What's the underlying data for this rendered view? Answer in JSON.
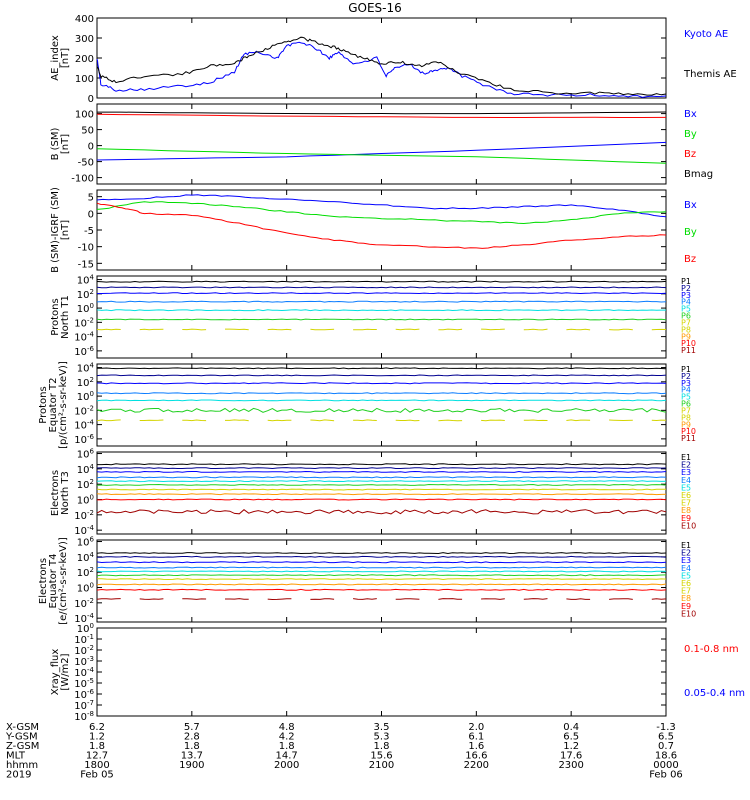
{
  "title": "GOES-16",
  "colors": {
    "black": "#000000",
    "blue": "#0000ff",
    "green": "#00dd00",
    "red": "#ff0000",
    "navy": "#000090",
    "dodgerblue": "#0a7cff",
    "cyan": "#00e0e0",
    "lime": "#20d020",
    "yellow": "#d4d400",
    "orange": "#ff9a00",
    "darkred": "#a00000"
  },
  "chart_data": [
    {
      "id": "ae",
      "type": "line",
      "ylabel": [
        "AE_index",
        "[nT]"
      ],
      "yticks": [
        "400",
        "300",
        "200",
        "100",
        "0"
      ],
      "ylim": [
        0,
        400
      ],
      "series": [
        {
          "name": "Kyoto AE",
          "color": "blue",
          "points": [
            [
              0,
              200
            ],
            [
              0.04,
              70
            ],
            [
              0.2,
              40
            ],
            [
              0.5,
              45
            ],
            [
              0.9,
              60
            ],
            [
              1.2,
              80
            ],
            [
              1.45,
              130
            ],
            [
              1.55,
              220
            ],
            [
              1.7,
              230
            ],
            [
              1.9,
              200
            ],
            [
              2.0,
              260
            ],
            [
              2.15,
              280
            ],
            [
              2.3,
              250
            ],
            [
              2.45,
              200
            ],
            [
              2.55,
              230
            ],
            [
              2.7,
              170
            ],
            [
              2.95,
              200
            ],
            [
              3.05,
              110
            ],
            [
              3.15,
              150
            ],
            [
              3.3,
              170
            ],
            [
              3.45,
              120
            ],
            [
              3.55,
              140
            ],
            [
              3.7,
              150
            ],
            [
              3.85,
              110
            ],
            [
              4.1,
              60
            ],
            [
              4.4,
              20
            ],
            [
              4.8,
              15
            ],
            [
              5.2,
              15
            ],
            [
              5.6,
              10
            ],
            [
              6,
              10
            ]
          ]
        },
        {
          "name": "Themis AE",
          "color": "black",
          "points": [
            [
              0,
              160
            ],
            [
              0.04,
              110
            ],
            [
              0.2,
              80
            ],
            [
              0.5,
              110
            ],
            [
              0.9,
              120
            ],
            [
              1.2,
              160
            ],
            [
              1.45,
              175
            ],
            [
              1.6,
              210
            ],
            [
              1.8,
              250
            ],
            [
              2.0,
              280
            ],
            [
              2.15,
              300
            ],
            [
              2.3,
              280
            ],
            [
              2.45,
              260
            ],
            [
              2.6,
              240
            ],
            [
              2.8,
              200
            ],
            [
              3.0,
              170
            ],
            [
              3.2,
              180
            ],
            [
              3.4,
              160
            ],
            [
              3.6,
              180
            ],
            [
              3.8,
              130
            ],
            [
              4.1,
              80
            ],
            [
              4.4,
              40
            ],
            [
              4.8,
              25
            ],
            [
              5.2,
              25
            ],
            [
              5.6,
              20
            ],
            [
              6,
              20
            ]
          ]
        }
      ]
    },
    {
      "id": "bsm",
      "type": "line",
      "ylabel": [
        "B (SM)",
        "[nT]"
      ],
      "yticks": [
        "100",
        "50",
        "0",
        "-50",
        "-100"
      ],
      "ylim": [
        -120,
        130
      ],
      "series": [
        {
          "name": "Bx",
          "color": "blue",
          "points": [
            [
              0,
              -45
            ],
            [
              2,
              -35
            ],
            [
              4,
              -15
            ],
            [
              6,
              10
            ]
          ]
        },
        {
          "name": "By",
          "color": "green",
          "points": [
            [
              0,
              -10
            ],
            [
              2,
              -25
            ],
            [
              4,
              -35
            ],
            [
              6,
              -55
            ]
          ]
        },
        {
          "name": "Bz",
          "color": "red",
          "points": [
            [
              0,
              98
            ],
            [
              2,
              92
            ],
            [
              4,
              88
            ],
            [
              6,
              88
            ]
          ]
        },
        {
          "name": "Bmag",
          "color": "black",
          "points": [
            [
              0,
              105
            ],
            [
              2,
              100
            ],
            [
              4,
              100
            ],
            [
              6,
              105
            ]
          ]
        }
      ]
    },
    {
      "id": "bigrf",
      "type": "line",
      "ylabel": [
        "B (SM)-IGRF (SM)",
        "[nT]"
      ],
      "yticks": [
        "5",
        "0",
        "-5",
        "-10",
        "-15"
      ],
      "ylim": [
        -17,
        7
      ],
      "series": [
        {
          "name": "Bx",
          "color": "blue",
          "points": [
            [
              0,
              4
            ],
            [
              0.5,
              4.5
            ],
            [
              1.0,
              5.5
            ],
            [
              1.5,
              5
            ],
            [
              2.0,
              4.2
            ],
            [
              2.5,
              3.5
            ],
            [
              3.0,
              2.5
            ],
            [
              3.5,
              1.5
            ],
            [
              4.0,
              1.5
            ],
            [
              4.5,
              2
            ],
            [
              5.0,
              2.5
            ],
            [
              5.5,
              1
            ],
            [
              6,
              -1
            ]
          ]
        },
        {
          "name": "By",
          "color": "green",
          "points": [
            [
              0,
              1
            ],
            [
              0.5,
              3.5
            ],
            [
              1.0,
              3
            ],
            [
              1.5,
              2
            ],
            [
              2.0,
              0.5
            ],
            [
              2.5,
              -1
            ],
            [
              3.0,
              -1.5
            ],
            [
              3.5,
              -2
            ],
            [
              4.0,
              -2.5
            ],
            [
              4.5,
              -3
            ],
            [
              5.0,
              -2
            ],
            [
              5.5,
              0
            ],
            [
              6,
              0.5
            ]
          ]
        },
        {
          "name": "Bz",
          "color": "red",
          "points": [
            [
              0,
              3
            ],
            [
              0.3,
              1.5
            ],
            [
              0.5,
              0
            ],
            [
              1.0,
              -0.5
            ],
            [
              1.5,
              -3
            ],
            [
              2.0,
              -6
            ],
            [
              2.5,
              -8
            ],
            [
              3.0,
              -9.5
            ],
            [
              3.5,
              -10
            ],
            [
              4.0,
              -10.5
            ],
            [
              4.5,
              -9.5
            ],
            [
              5.0,
              -8
            ],
            [
              5.5,
              -7
            ],
            [
              6,
              -6.5
            ]
          ]
        }
      ]
    },
    {
      "id": "p1",
      "type": "line",
      "log": true,
      "ylabel": [
        "Protons",
        "North T1"
      ],
      "yticks": [
        "10^4",
        "10^2",
        "10^0",
        "10^-2",
        "10^-4",
        "10^-6"
      ],
      "ylim": [
        -7,
        4.5
      ],
      "legend": [
        "P1",
        "P2",
        "P3",
        "P4",
        "P5",
        "P6",
        "P7",
        "P8",
        "P9",
        "P10",
        "P11"
      ],
      "legend_colors": [
        "black",
        "navy",
        "blue",
        "dodgerblue",
        "cyan",
        "lime",
        "yellow",
        "yellow",
        "orange",
        "red",
        "darkred"
      ],
      "series": [
        {
          "name": "P1",
          "color": "black",
          "level": 3.7
        },
        {
          "name": "P2",
          "color": "navy",
          "level": 2.9
        },
        {
          "name": "P3",
          "color": "blue",
          "level": 2.1
        },
        {
          "name": "P4",
          "color": "dodgerblue",
          "level": 0.9
        },
        {
          "name": "P5",
          "color": "cyan",
          "level": -0.3
        },
        {
          "name": "P6",
          "color": "lime",
          "level": -1.6
        },
        {
          "name": "P7",
          "color": "yellow",
          "level": -3.0,
          "dashed": true
        }
      ]
    },
    {
      "id": "p2",
      "type": "line",
      "log": true,
      "ylabel": [
        "Protons",
        "Equator T2",
        "[p/(cm²-s-sr-keV)]"
      ],
      "yticks": [
        "10^4",
        "10^2",
        "10^0",
        "10^-2",
        "10^-4",
        "10^-6"
      ],
      "ylim": [
        -7,
        4.5
      ],
      "legend": [
        "P1",
        "P2",
        "P3",
        "P4",
        "P5",
        "P6",
        "P7",
        "P8",
        "P9",
        "P10",
        "P11"
      ],
      "legend_colors": [
        "black",
        "navy",
        "blue",
        "dodgerblue",
        "cyan",
        "lime",
        "yellow",
        "yellow",
        "orange",
        "red",
        "darkred"
      ],
      "series": [
        {
          "name": "P1",
          "color": "black",
          "level": 3.9
        },
        {
          "name": "P2",
          "color": "navy",
          "level": 2.9
        },
        {
          "name": "P3",
          "color": "blue",
          "level": 1.8
        },
        {
          "name": "P4",
          "color": "dodgerblue",
          "level": 0.4
        },
        {
          "name": "P5",
          "color": "cyan",
          "level": -0.6
        },
        {
          "name": "P6",
          "color": "lime",
          "level": -2.0,
          "noisy": true
        },
        {
          "name": "P7",
          "color": "yellow",
          "level": -3.4,
          "dashed": true
        }
      ]
    },
    {
      "id": "e1",
      "type": "line",
      "log": true,
      "ylabel": [
        "Electrons",
        "North T3"
      ],
      "yticks": [
        "10^6",
        "10^4",
        "10^2",
        "10^0",
        "10^-2",
        "10^-4"
      ],
      "ylim": [
        -4.5,
        6.2
      ],
      "legend": [
        "E1",
        "E2",
        "E3",
        "E4",
        "E5",
        "E6",
        "E7",
        "E8",
        "E9",
        "E10"
      ],
      "legend_colors": [
        "black",
        "navy",
        "blue",
        "dodgerblue",
        "cyan",
        "yellow",
        "yellow",
        "orange",
        "red",
        "darkred"
      ],
      "series": [
        {
          "name": "E1",
          "color": "black",
          "level": 4.6
        },
        {
          "name": "E2",
          "color": "navy",
          "level": 4.1
        },
        {
          "name": "E3",
          "color": "blue",
          "level": 3.6
        },
        {
          "name": "E4",
          "color": "dodgerblue",
          "level": 2.9
        },
        {
          "name": "E5",
          "color": "cyan",
          "level": 2.4
        },
        {
          "name": "E6",
          "color": "lime",
          "level": 1.9
        },
        {
          "name": "E7",
          "color": "yellow",
          "level": 1.3
        },
        {
          "name": "E8",
          "color": "orange",
          "level": 0.7
        },
        {
          "name": "E9",
          "color": "red",
          "level": 0.0
        },
        {
          "name": "E10",
          "color": "darkred",
          "level": -1.6,
          "noisy": true
        }
      ]
    },
    {
      "id": "e2",
      "type": "line",
      "log": true,
      "ylabel": [
        "Electrons",
        "Equator T4",
        "[e/(cm²-s-sr-keV)]"
      ],
      "yticks": [
        "10^6",
        "10^4",
        "10^2",
        "10^0",
        "10^-2",
        "10^-4"
      ],
      "ylim": [
        -4.5,
        6.2
      ],
      "legend": [
        "E1",
        "E2",
        "E3",
        "E4",
        "E5",
        "E6",
        "E7",
        "E8",
        "E9",
        "E10"
      ],
      "legend_colors": [
        "black",
        "navy",
        "blue",
        "dodgerblue",
        "cyan",
        "yellow",
        "yellow",
        "orange",
        "red",
        "darkred"
      ],
      "series": [
        {
          "name": "E1",
          "color": "black",
          "level": 4.5
        },
        {
          "name": "E2",
          "color": "navy",
          "level": 4.0
        },
        {
          "name": "E3",
          "color": "blue",
          "level": 3.3
        },
        {
          "name": "E4",
          "color": "dodgerblue",
          "level": 2.6
        },
        {
          "name": "E5",
          "color": "cyan",
          "level": 2.1
        },
        {
          "name": "E6",
          "color": "lime",
          "level": 1.6
        },
        {
          "name": "E7",
          "color": "yellow",
          "level": 1.1
        },
        {
          "name": "E8",
          "color": "orange",
          "level": 0.4
        },
        {
          "name": "E9",
          "color": "red",
          "level": -0.3
        },
        {
          "name": "E10",
          "color": "darkred",
          "level": -1.5,
          "dashed": true
        }
      ]
    },
    {
      "id": "xray",
      "type": "line",
      "log": true,
      "ylabel": [
        "Xray_flux",
        "[W/m2]"
      ],
      "yticks": [
        "10^0",
        "10^-1",
        "10^-2",
        "10^-3",
        "10^-4",
        "10^-5",
        "10^-6",
        "10^-7",
        "10^-8"
      ],
      "ylim": [
        -8,
        0
      ],
      "legend": [
        "0.1-0.8 nm",
        "0.05-0.4 nm"
      ],
      "legend_colors": [
        "red",
        "blue"
      ],
      "series": []
    }
  ],
  "xaxis": {
    "rows": [
      {
        "label": "X-GSM",
        "values": [
          "6.2",
          "5.7",
          "4.8",
          "3.5",
          "2.0",
          "0.4",
          "-1.3"
        ]
      },
      {
        "label": "Y-GSM",
        "values": [
          "1.2",
          "2.8",
          "4.2",
          "5.3",
          "6.1",
          "6.5",
          "6.5"
        ]
      },
      {
        "label": "Z-GSM",
        "values": [
          "1.8",
          "1.8",
          "1.8",
          "1.8",
          "1.6",
          "1.2",
          "0.7"
        ]
      },
      {
        "label": "MLT",
        "values": [
          "12.7",
          "13.7",
          "14.7",
          "15.6",
          "16.6",
          "17.6",
          "18.6"
        ]
      },
      {
        "label": "hhmm",
        "values": [
          "1800",
          "1900",
          "2000",
          "2100",
          "2200",
          "2300",
          "0000"
        ]
      }
    ],
    "year": "2019",
    "start_date": "Feb 05",
    "end_date": "Feb 06"
  }
}
